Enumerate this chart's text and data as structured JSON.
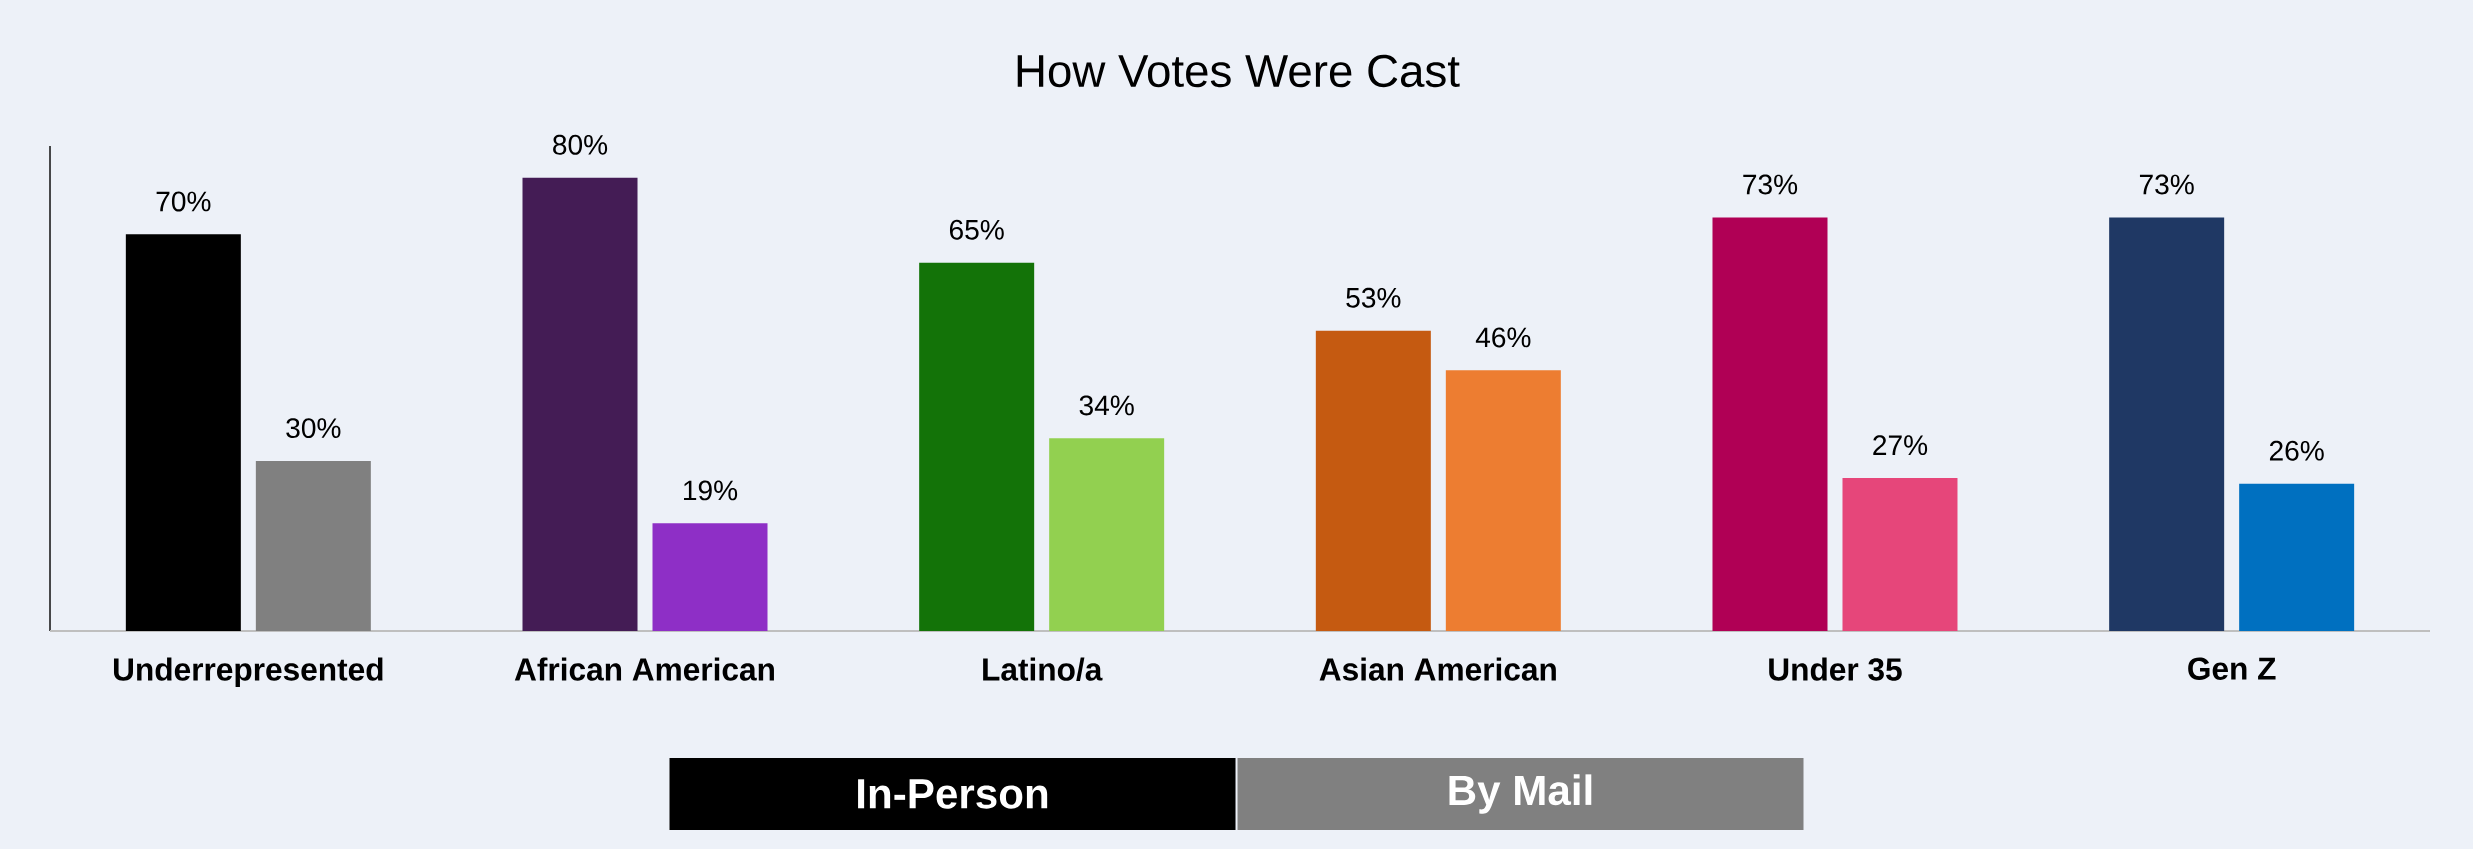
{
  "chart_data": {
    "type": "bar",
    "title": "How Votes Were Cast",
    "categories": [
      "Underrepresented",
      "African American",
      "Latino/a",
      "Asian American",
      "Under 35",
      "Gen Z"
    ],
    "series": [
      {
        "name": "In-Person",
        "color": "#000000",
        "colors": [
          "#000000",
          "#441c55",
          "#137308",
          "#c55a11",
          "#b00055",
          "#1f3864"
        ],
        "values": [
          70,
          80,
          65,
          53,
          73,
          73
        ],
        "value_labels": [
          "70%",
          "80%",
          "65%",
          "53%",
          "73%",
          "73%"
        ]
      },
      {
        "name": "By Mail",
        "color": "#808080",
        "colors": [
          "#808080",
          "#8e2fc6",
          "#92d050",
          "#ed7d31",
          "#e6467a",
          "#0070c0"
        ],
        "values": [
          30,
          19,
          34,
          46,
          27,
          26
        ],
        "value_labels": [
          "30%",
          "19%",
          "34%",
          "46%",
          "27%",
          "26%"
        ]
      }
    ],
    "legend": "bottom"
  }
}
